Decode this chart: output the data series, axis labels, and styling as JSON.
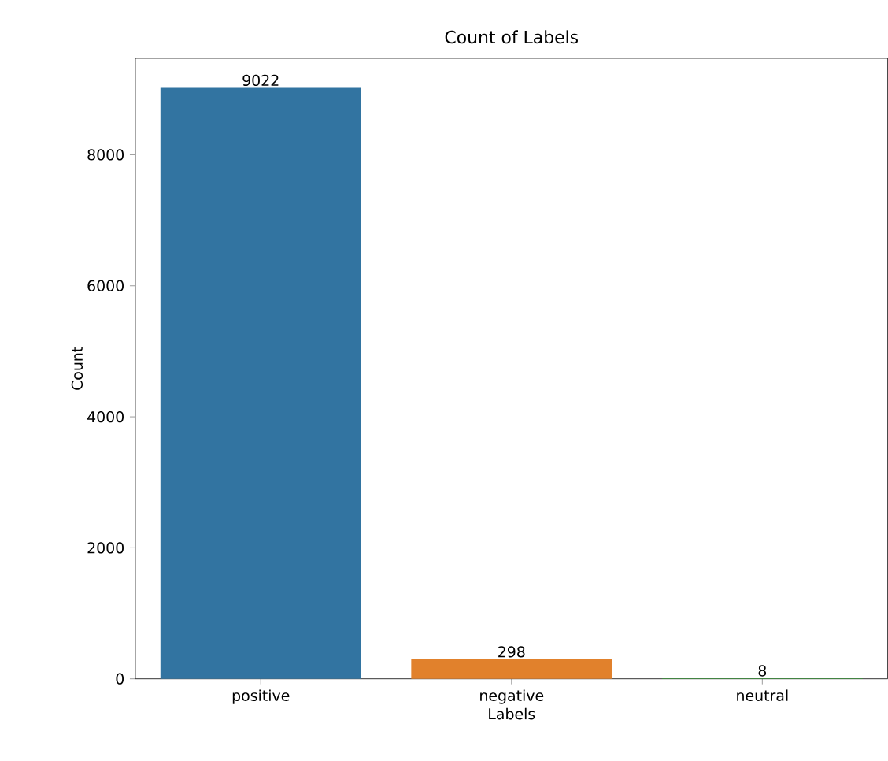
{
  "chart_data": {
    "type": "bar",
    "title": "Count of Labels",
    "xlabel": "Labels",
    "ylabel": "Count",
    "categories": [
      "positive",
      "negative",
      "neutral"
    ],
    "values": [
      9022,
      298,
      8
    ],
    "colors": [
      "#3274a1",
      "#e1812c",
      "#3a923a"
    ],
    "ylim": [
      0,
      9473
    ],
    "yticks": [
      0,
      2000,
      4000,
      6000,
      8000
    ],
    "data_labels": true
  }
}
